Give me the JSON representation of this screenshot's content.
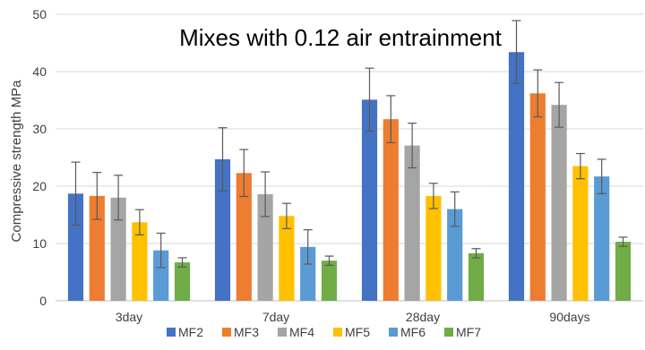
{
  "chart_data": {
    "type": "bar",
    "title": "Mixes with 0.12 air entrainment",
    "xlabel": "",
    "ylabel": "Compressive strength MPa",
    "ylim": [
      0,
      50
    ],
    "yticks": [
      0,
      10,
      20,
      30,
      40,
      50
    ],
    "grid": true,
    "legend_position": "bottom",
    "categories": [
      "3day",
      "7day",
      "28day",
      "90days"
    ],
    "series": [
      {
        "name": "MF2",
        "color": "#4472C4",
        "values": [
          18.7,
          24.7,
          35.1,
          43.4
        ],
        "errors": [
          5.5,
          5.5,
          5.5,
          5.5
        ]
      },
      {
        "name": "MF3",
        "color": "#ED7D31",
        "values": [
          18.3,
          22.3,
          31.7,
          36.2
        ],
        "errors": [
          4.1,
          4.1,
          4.1,
          4.1
        ]
      },
      {
        "name": "MF4",
        "color": "#A5A5A5",
        "values": [
          18.0,
          18.6,
          27.1,
          34.2
        ],
        "errors": [
          3.9,
          3.9,
          3.9,
          3.9
        ]
      },
      {
        "name": "MF5",
        "color": "#FFC000",
        "values": [
          13.7,
          14.8,
          18.3,
          23.5
        ],
        "errors": [
          2.2,
          2.2,
          2.2,
          2.2
        ]
      },
      {
        "name": "MF6",
        "color": "#5B9BD5",
        "values": [
          8.8,
          9.4,
          16.0,
          21.7
        ],
        "errors": [
          3.0,
          3.0,
          3.0,
          3.0
        ]
      },
      {
        "name": "MF7",
        "color": "#70AD47",
        "values": [
          6.7,
          7.0,
          8.3,
          10.3
        ],
        "errors": [
          0.8,
          0.8,
          0.8,
          0.8
        ]
      }
    ]
  }
}
